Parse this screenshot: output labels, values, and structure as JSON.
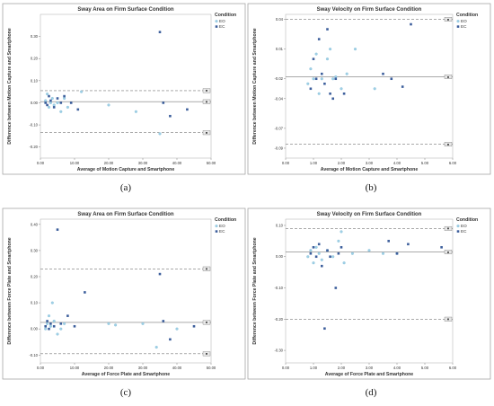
{
  "chart_data": [
    {
      "type": "scatter",
      "title": "Sway Area on Firm Surface Condition",
      "xlabel": "Average of Motion Capture and Smartphone",
      "ylabel": "Difference between Motion Capture and Smartphone",
      "xlim": [
        0,
        50
      ],
      "ylim": [
        -0.25,
        0.4
      ],
      "xticks": [
        "0.00",
        "10.00",
        "20.00",
        "30.00",
        "40.00",
        "50.00"
      ],
      "yticks": [
        "-0.20",
        "-0.10",
        "0.00",
        "0.10",
        "0.20",
        "0.30"
      ],
      "legend": {
        "title": "Condition",
        "entries": [
          "EO",
          "EC"
        ],
        "position": "top-right"
      },
      "reference_lines": [
        {
          "y": 0.055,
          "style": "dashed",
          "tag": "■"
        },
        {
          "y": 0.005,
          "style": "solid",
          "tag": "■"
        },
        {
          "y": -0.135,
          "style": "dashed",
          "tag": "■"
        }
      ],
      "series": [
        {
          "name": "EO",
          "points": [
            [
              1.5,
              0.01
            ],
            [
              2,
              0.04
            ],
            [
              2.5,
              -0.02
            ],
            [
              3,
              0.0
            ],
            [
              3.5,
              0.02
            ],
            [
              4,
              -0.01
            ],
            [
              5,
              0.0
            ],
            [
              6,
              -0.04
            ],
            [
              7,
              0.02
            ],
            [
              8,
              -0.02
            ],
            [
              12,
              0.05
            ],
            [
              20,
              -0.01
            ],
            [
              28,
              -0.04
            ],
            [
              35,
              -0.14
            ]
          ]
        },
        {
          "name": "EC",
          "points": [
            [
              1.5,
              0.0
            ],
            [
              2,
              -0.01
            ],
            [
              2.5,
              0.03
            ],
            [
              3,
              0.01
            ],
            [
              4,
              -0.02
            ],
            [
              5,
              0.02
            ],
            [
              6,
              0.0
            ],
            [
              7,
              0.03
            ],
            [
              9,
              0.0
            ],
            [
              11,
              -0.03
            ],
            [
              35,
              0.32
            ],
            [
              36,
              0.0
            ],
            [
              38,
              -0.06
            ],
            [
              43,
              -0.03
            ]
          ]
        }
      ]
    },
    {
      "type": "scatter",
      "title": "Sway Velocity on Firm Surface Condition",
      "xlabel": "Average of Motion Capture and Smartphone",
      "ylabel": "Difference between Motion Capture and Smartphone",
      "xlim": [
        0,
        6
      ],
      "ylim": [
        -0.1,
        0.045
      ],
      "xticks": [
        "0.00",
        "1.00",
        "2.00",
        "3.00",
        "4.00",
        "5.00",
        "6.00"
      ],
      "yticks": [
        "-0.09",
        "-0.07",
        "-0.04",
        "-0.02",
        "0.01",
        "0.04"
      ],
      "legend": {
        "title": "Condition",
        "entries": [
          "EO",
          "EC"
        ],
        "position": "top-right"
      },
      "reference_lines": [
        {
          "y": 0.04,
          "style": "dashed",
          "tag": "■"
        },
        {
          "y": -0.018,
          "style": "solid",
          "tag": "■"
        },
        {
          "y": -0.086,
          "style": "dashed",
          "tag": "■"
        }
      ],
      "series": [
        {
          "name": "EO",
          "points": [
            [
              0.8,
              -0.025
            ],
            [
              0.9,
              -0.01
            ],
            [
              1.0,
              -0.02
            ],
            [
              1.1,
              0.005
            ],
            [
              1.2,
              -0.035
            ],
            [
              1.3,
              -0.02
            ],
            [
              1.5,
              0.0
            ],
            [
              1.6,
              0.01
            ],
            [
              1.7,
              -0.02
            ],
            [
              1.8,
              -0.018
            ],
            [
              2.0,
              -0.03
            ],
            [
              2.2,
              -0.015
            ],
            [
              2.5,
              0.01
            ],
            [
              3.2,
              -0.03
            ]
          ]
        },
        {
          "name": "EC",
          "points": [
            [
              0.9,
              -0.03
            ],
            [
              1.0,
              0.0
            ],
            [
              1.1,
              -0.02
            ],
            [
              1.2,
              0.02
            ],
            [
              1.3,
              -0.015
            ],
            [
              1.4,
              -0.025
            ],
            [
              1.5,
              0.03
            ],
            [
              1.6,
              -0.035
            ],
            [
              1.7,
              -0.04
            ],
            [
              1.8,
              -0.02
            ],
            [
              2.1,
              -0.035
            ],
            [
              3.5,
              -0.015
            ],
            [
              3.8,
              -0.02
            ],
            [
              4.2,
              -0.028
            ],
            [
              4.5,
              0.035
            ]
          ]
        }
      ]
    },
    {
      "type": "scatter",
      "title": "Sway Area on Firm Surface Condition",
      "xlabel": "Average of Force Plate and Smartphone",
      "ylabel": "Difference between Force Plate and Smartphone",
      "xlim": [
        0,
        50
      ],
      "ylim": [
        -0.13,
        0.42
      ],
      "xticks": [
        "0.00",
        "10.00",
        "20.00",
        "30.00",
        "40.00",
        "50.00"
      ],
      "yticks": [
        "-0.10",
        "0.00",
        "0.10",
        "0.20",
        "0.30",
        "0.40"
      ],
      "legend": {
        "title": "Condition",
        "entries": [
          "EO",
          "EC"
        ],
        "position": "top-right"
      },
      "reference_lines": [
        {
          "y": 0.23,
          "style": "dashed",
          "tag": "■"
        },
        {
          "y": 0.025,
          "style": "solid",
          "tag": "■"
        },
        {
          "y": -0.095,
          "style": "dashed",
          "tag": "■"
        }
      ],
      "series": [
        {
          "name": "EO",
          "points": [
            [
              1.5,
              0.0
            ],
            [
              2,
              0.02
            ],
            [
              2.5,
              0.05
            ],
            [
              3,
              0.01
            ],
            [
              3.5,
              0.1
            ],
            [
              4,
              0.03
            ],
            [
              5,
              -0.02
            ],
            [
              6,
              0.0
            ],
            [
              7,
              0.02
            ],
            [
              20,
              0.02
            ],
            [
              22,
              0.015
            ],
            [
              30,
              0.02
            ],
            [
              34,
              -0.07
            ],
            [
              40,
              0.0
            ]
          ]
        },
        {
          "name": "EC",
          "points": [
            [
              1.5,
              0.01
            ],
            [
              2,
              0.03
            ],
            [
              2.5,
              0.0
            ],
            [
              3,
              0.02
            ],
            [
              4,
              0.01
            ],
            [
              5,
              0.38
            ],
            [
              6,
              0.02
            ],
            [
              8,
              0.05
            ],
            [
              10,
              0.01
            ],
            [
              13,
              0.14
            ],
            [
              35,
              0.21
            ],
            [
              36,
              0.03
            ],
            [
              38,
              -0.04
            ],
            [
              45,
              0.01
            ]
          ]
        }
      ]
    },
    {
      "type": "scatter",
      "title": "Sway Velocity on Firm Surface Condition",
      "xlabel": "Average of Force Plate and Smartphone",
      "ylabel": "Difference between Force Plate and Smartphone",
      "xlim": [
        0,
        6
      ],
      "ylim": [
        -0.34,
        0.12
      ],
      "xticks": [
        "0.00",
        "1.00",
        "2.00",
        "3.00",
        "4.00",
        "5.00",
        "6.00"
      ],
      "yticks": [
        "-0.30",
        "-0.20",
        "-0.10",
        "0.00",
        "0.10"
      ],
      "legend": {
        "title": "Condition",
        "entries": [
          "EO",
          "EC"
        ],
        "position": "top-right"
      },
      "reference_lines": [
        {
          "y": 0.09,
          "style": "dashed",
          "tag": "■"
        },
        {
          "y": 0.015,
          "style": "solid",
          "tag": "■"
        },
        {
          "y": -0.2,
          "style": "dashed",
          "tag": "■"
        }
      ],
      "series": [
        {
          "name": "EO",
          "points": [
            [
              0.8,
              0.0
            ],
            [
              0.9,
              0.02
            ],
            [
              1.0,
              -0.02
            ],
            [
              1.1,
              0.03
            ],
            [
              1.2,
              0.01
            ],
            [
              1.3,
              -0.01
            ],
            [
              1.5,
              0.02
            ],
            [
              1.7,
              0.0
            ],
            [
              1.9,
              0.05
            ],
            [
              2.0,
              0.08
            ],
            [
              2.1,
              -0.02
            ],
            [
              2.4,
              0.01
            ],
            [
              3.0,
              0.02
            ],
            [
              3.5,
              0.01
            ],
            [
              4.0,
              0.01
            ]
          ]
        },
        {
          "name": "EC",
          "points": [
            [
              0.9,
              0.01
            ],
            [
              1.0,
              0.03
            ],
            [
              1.1,
              0.0
            ],
            [
              1.2,
              0.04
            ],
            [
              1.3,
              -0.03
            ],
            [
              1.4,
              -0.23
            ],
            [
              1.5,
              0.02
            ],
            [
              1.6,
              0.0
            ],
            [
              1.8,
              -0.1
            ],
            [
              1.9,
              0.01
            ],
            [
              2.0,
              0.03
            ],
            [
              3.7,
              0.05
            ],
            [
              4.0,
              0.01
            ],
            [
              4.4,
              0.04
            ],
            [
              5.6,
              0.03
            ]
          ]
        }
      ]
    }
  ],
  "captions": [
    "(a)",
    "(b)",
    "(c)",
    "(d)"
  ],
  "colors": {
    "eo": "#9ed0e6",
    "ec": "#3d5f9c",
    "frame": "#999999",
    "refline": "#777777"
  }
}
